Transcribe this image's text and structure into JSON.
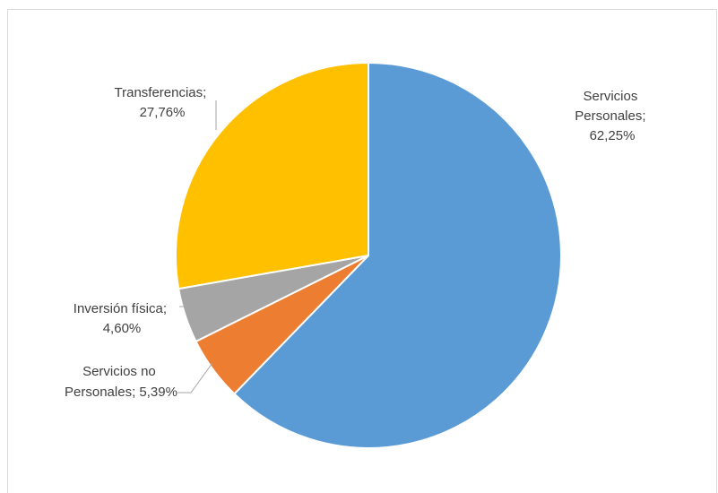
{
  "chart_data": {
    "type": "pie",
    "slices": [
      {
        "name": "Servicios Personales",
        "value": 62.25,
        "label_lines": [
          "Servicios",
          "Personales;",
          "62,25%"
        ],
        "color": "#5b9bd5"
      },
      {
        "name": "Servicios no Personales",
        "value": 5.39,
        "label_lines": [
          "Servicios no",
          "Personales; 5,39%"
        ],
        "color": "#ed7d31"
      },
      {
        "name": "Inversión física",
        "value": 4.6,
        "label_lines": [
          "Inversión  física;",
          "4,60%"
        ],
        "color": "#a5a5a5"
      },
      {
        "name": "Transferencias",
        "value": 27.76,
        "label_lines": [
          "Transferencias;",
          "27,76%"
        ],
        "color": "#ffc000"
      }
    ]
  }
}
